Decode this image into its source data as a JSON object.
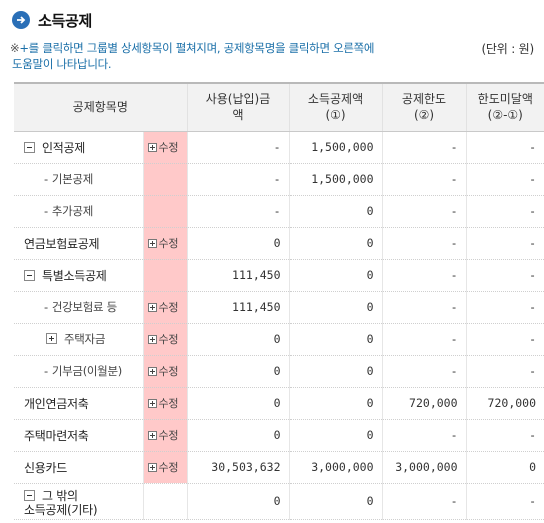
{
  "title": "소득공제",
  "notice": {
    "mark": "※",
    "line1": "+를 클릭하면 그룹별 상세항목이 펼쳐지며, 공제항목명을 클릭하면 오른쪽에",
    "line2": "도움말이 나타납니다."
  },
  "unit": "(단위 : 원)",
  "headers": {
    "item": "공제항목명",
    "used_line1": "사용(납입)금",
    "used_line2": "액",
    "deduct_line1": "소득공제액",
    "deduct_line2": "(①)",
    "limit_line1": "공제한도",
    "limit_line2": "(②)",
    "remain_line1": "한도미달액",
    "remain_line2": "(②-①)"
  },
  "edit_label": "수정",
  "rows": [
    {
      "name": "인적공제",
      "used": "-",
      "deduct": "1,500,000",
      "limit": "-",
      "remain": "-"
    },
    {
      "name": "기본공제",
      "used": "-",
      "deduct": "1,500,000",
      "limit": "-",
      "remain": "-"
    },
    {
      "name": "추가공제",
      "used": "-",
      "deduct": "0",
      "limit": "-",
      "remain": "-"
    },
    {
      "name": "연금보험료공제",
      "used": "0",
      "deduct": "0",
      "limit": "-",
      "remain": "-"
    },
    {
      "name": "특별소득공제",
      "used": "111,450",
      "deduct": "0",
      "limit": "-",
      "remain": "-"
    },
    {
      "name": "건강보험료 등",
      "used": "111,450",
      "deduct": "0",
      "limit": "-",
      "remain": "-"
    },
    {
      "name": "주택자금",
      "used": "0",
      "deduct": "0",
      "limit": "-",
      "remain": "-"
    },
    {
      "name": "기부금(이월분)",
      "used": "0",
      "deduct": "0",
      "limit": "-",
      "remain": "-"
    },
    {
      "name": "개인연금저축",
      "used": "0",
      "deduct": "0",
      "limit": "720,000",
      "remain": "720,000"
    },
    {
      "name": "주택마련저축",
      "used": "0",
      "deduct": "0",
      "limit": "-",
      "remain": "-"
    },
    {
      "name": "신용카드",
      "used": "30,503,632",
      "deduct": "3,000,000",
      "limit": "3,000,000",
      "remain": "0"
    },
    {
      "name_line1": "그 밖의",
      "name_line2": "소득공제(기타)",
      "used": "0",
      "deduct": "0",
      "limit": "-",
      "remain": "-"
    }
  ]
}
